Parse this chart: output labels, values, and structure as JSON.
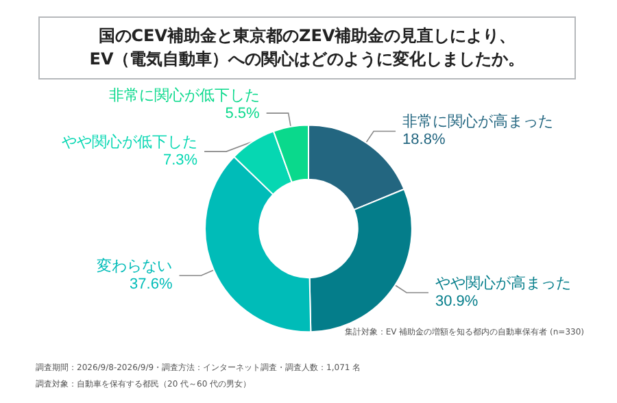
{
  "chart_data": {
    "type": "donut",
    "title": "国のCEV補助金と東京都のZEV補助金の見直しにより、\nEV（電気自動車）への関心はどのように変化しましたか。",
    "categories": [
      "非常に関心が高まった",
      "やや関心が高まった",
      "変わらない",
      "やや関心が低下した",
      "非常に関心が低下した"
    ],
    "values": [
      18.8,
      30.9,
      37.6,
      7.3,
      5.5
    ],
    "value_labels": [
      "18.8%",
      "30.9%",
      "37.6%",
      "7.3%",
      "5.5%"
    ],
    "colors": [
      "#236680",
      "#047d8a",
      "#00bcb8",
      "#06d7b2",
      "#0ad98c"
    ],
    "legend": false,
    "annotations": [
      "集計対象：EV 補助金の増額を知る都内の自動車保有者 (n=330)",
      "調査期間：2026/9/8-2026/9/9・調査方法：インターネット調査・調査人数：1,071 名",
      "調査対象：自動車を保有する都民（20 代～60 代の男女）"
    ]
  }
}
